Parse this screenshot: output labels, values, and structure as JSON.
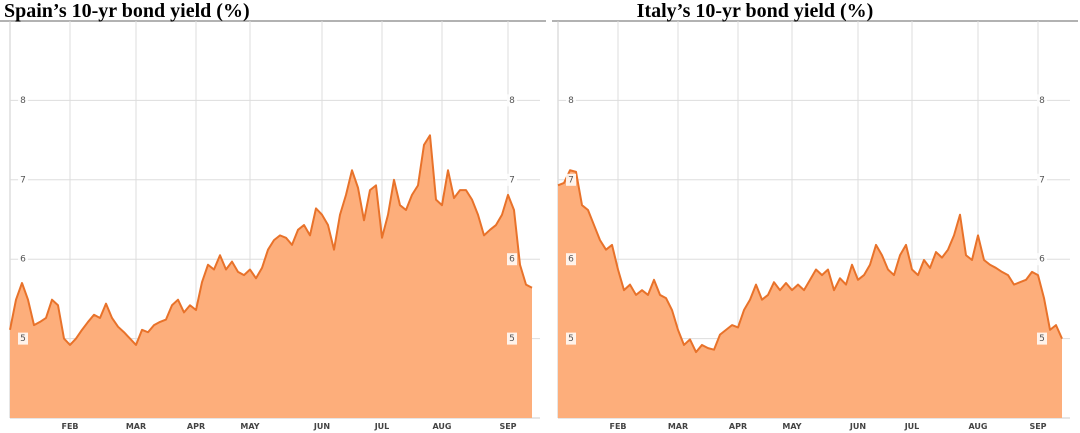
{
  "chart_data": [
    {
      "type": "area",
      "title": "Spain’s 10-yr bond yield (%)",
      "categories": [
        null,
        null,
        null,
        null,
        null,
        null,
        null,
        null,
        null,
        null,
        "FEB",
        null,
        null,
        null,
        null,
        null,
        null,
        null,
        null,
        null,
        null,
        "MAR",
        null,
        null,
        null,
        null,
        null,
        null,
        null,
        null,
        null,
        "APR",
        null,
        null,
        null,
        null,
        null,
        null,
        null,
        null,
        "MAY",
        null,
        null,
        null,
        null,
        null,
        null,
        null,
        null,
        null,
        null,
        null,
        "JUN",
        null,
        null,
        null,
        null,
        null,
        null,
        null,
        null,
        null,
        "JUL",
        null,
        null,
        null,
        null,
        null,
        null,
        null,
        null,
        null,
        "AUG",
        null,
        null,
        null,
        null,
        null,
        null,
        null,
        null,
        null,
        null,
        "SEP",
        null,
        null,
        null,
        null
      ],
      "values": [
        5.11,
        5.49,
        5.7,
        5.49,
        5.17,
        5.21,
        5.26,
        5.49,
        5.42,
        5.0,
        4.92,
        5.0,
        5.11,
        5.21,
        5.3,
        5.26,
        5.44,
        5.26,
        5.15,
        5.08,
        5.0,
        4.92,
        5.11,
        5.08,
        5.17,
        5.21,
        5.24,
        5.42,
        5.49,
        5.33,
        5.42,
        5.36,
        5.71,
        5.93,
        5.87,
        6.05,
        5.87,
        5.97,
        5.84,
        5.8,
        5.87,
        5.76,
        5.89,
        6.12,
        6.24,
        6.3,
        6.27,
        6.18,
        6.37,
        6.43,
        6.3,
        6.64,
        6.56,
        6.43,
        6.12,
        6.56,
        6.81,
        7.12,
        6.9,
        6.49,
        6.87,
        6.93,
        6.27,
        6.56,
        7.0,
        6.68,
        6.62,
        6.81,
        6.93,
        7.44,
        7.56,
        6.75,
        6.68,
        7.12,
        6.77,
        6.87,
        6.87,
        6.75,
        6.56,
        6.3,
        6.37,
        6.43,
        6.56,
        6.81,
        6.62,
        5.93,
        5.68,
        5.64
      ],
      "color": "#e8722a",
      "fill": "#fdae7b",
      "ylim": [
        4,
        9
      ],
      "yticks": [
        5,
        6,
        7,
        8
      ],
      "grid": true
    },
    {
      "type": "area",
      "title": "Italy’s 10-yr bond yield (%)",
      "categories": [
        null,
        null,
        null,
        null,
        null,
        null,
        null,
        null,
        null,
        null,
        "FEB",
        null,
        null,
        null,
        null,
        null,
        null,
        null,
        null,
        null,
        "MAR",
        null,
        null,
        null,
        null,
        null,
        null,
        null,
        null,
        null,
        "APR",
        null,
        null,
        null,
        null,
        null,
        null,
        null,
        null,
        "MAY",
        null,
        null,
        null,
        null,
        null,
        null,
        null,
        null,
        null,
        null,
        "JUN",
        null,
        null,
        null,
        null,
        null,
        null,
        null,
        null,
        "JUL",
        null,
        null,
        null,
        null,
        null,
        null,
        null,
        null,
        null,
        null,
        "AUG",
        null,
        null,
        null,
        null,
        null,
        null,
        null,
        null,
        null,
        "SEP",
        null,
        null,
        null,
        null
      ],
      "values": [
        6.93,
        6.96,
        7.12,
        7.1,
        6.68,
        6.62,
        6.43,
        6.24,
        6.12,
        6.18,
        5.87,
        5.61,
        5.68,
        5.55,
        5.61,
        5.55,
        5.74,
        5.55,
        5.51,
        5.36,
        5.11,
        4.92,
        4.99,
        4.83,
        4.92,
        4.88,
        4.86,
        5.05,
        5.11,
        5.17,
        5.14,
        5.36,
        5.49,
        5.68,
        5.49,
        5.55,
        5.71,
        5.61,
        5.7,
        5.61,
        5.68,
        5.61,
        5.74,
        5.87,
        5.8,
        5.87,
        5.61,
        5.76,
        5.68,
        5.93,
        5.74,
        5.8,
        5.93,
        6.18,
        6.05,
        5.87,
        5.8,
        6.05,
        6.18,
        5.87,
        5.8,
        5.99,
        5.89,
        6.09,
        6.02,
        6.12,
        6.3,
        6.56,
        6.05,
        5.99,
        6.3,
        5.99,
        5.93,
        5.89,
        5.84,
        5.8,
        5.68,
        5.71,
        5.74,
        5.84,
        5.8,
        5.51,
        5.11,
        5.17,
        5.0
      ],
      "color": "#e8722a",
      "fill": "#fdae7b",
      "ylim": [
        4,
        9
      ],
      "yticks": [
        5,
        6,
        7,
        8
      ],
      "grid": true
    }
  ]
}
